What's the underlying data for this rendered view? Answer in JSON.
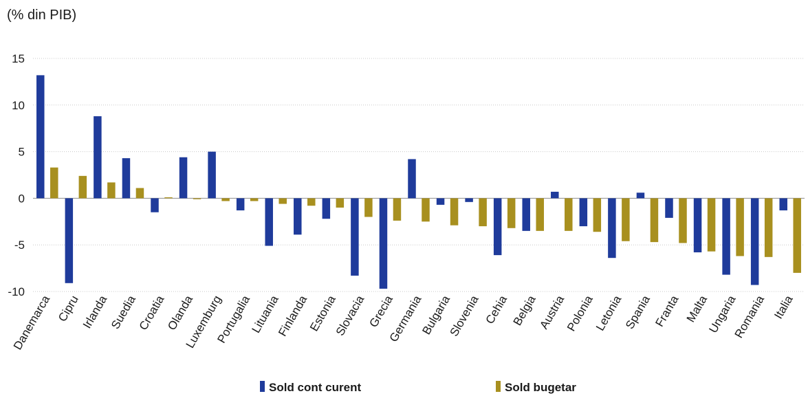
{
  "chart_data": {
    "type": "bar",
    "unit_label": "(% din PIB)",
    "title": "",
    "xlabel": "",
    "ylabel": "",
    "ylim": [
      -10,
      15
    ],
    "yticks": [
      -10,
      -5,
      0,
      5,
      10,
      15
    ],
    "grid": true,
    "legend_position": "bottom",
    "categories": [
      "Danemarca",
      "Cipru",
      "Irlanda",
      "Suedia",
      "Croatia",
      "Olanda",
      "Luxemburg",
      "Portugalia",
      "Lituania",
      "Finlanda",
      "Estonia",
      "Slovacia",
      "Grecia",
      "Germania",
      "Bulgaria",
      "Slovenia",
      "Cehia",
      "Belgia",
      "Austria",
      "Polonia",
      "Letonia",
      "Spania",
      "Franta",
      "Malta",
      "Ungaria",
      "Romania",
      "Italia"
    ],
    "series": [
      {
        "name": "Sold cont curent",
        "color": "#1f3b9b",
        "values": [
          13.2,
          -9.1,
          8.8,
          4.3,
          -1.5,
          4.4,
          5.0,
          -1.3,
          -5.1,
          -3.9,
          -2.2,
          -8.3,
          -9.7,
          4.2,
          -0.7,
          -0.4,
          -6.1,
          -3.5,
          0.7,
          -3.0,
          -6.4,
          0.6,
          -2.1,
          -5.8,
          -8.2,
          -9.3,
          -1.3
        ]
      },
      {
        "name": "Sold bugetar",
        "color": "#a8901f",
        "values": [
          3.3,
          2.4,
          1.7,
          1.1,
          0.1,
          -0.1,
          -0.3,
          -0.3,
          -0.6,
          -0.8,
          -1.0,
          -2.0,
          -2.4,
          -2.5,
          -2.9,
          -3.0,
          -3.2,
          -3.5,
          -3.5,
          -3.6,
          -4.6,
          -4.7,
          -4.8,
          -5.7,
          -6.2,
          -6.3,
          -8.0
        ]
      }
    ]
  }
}
